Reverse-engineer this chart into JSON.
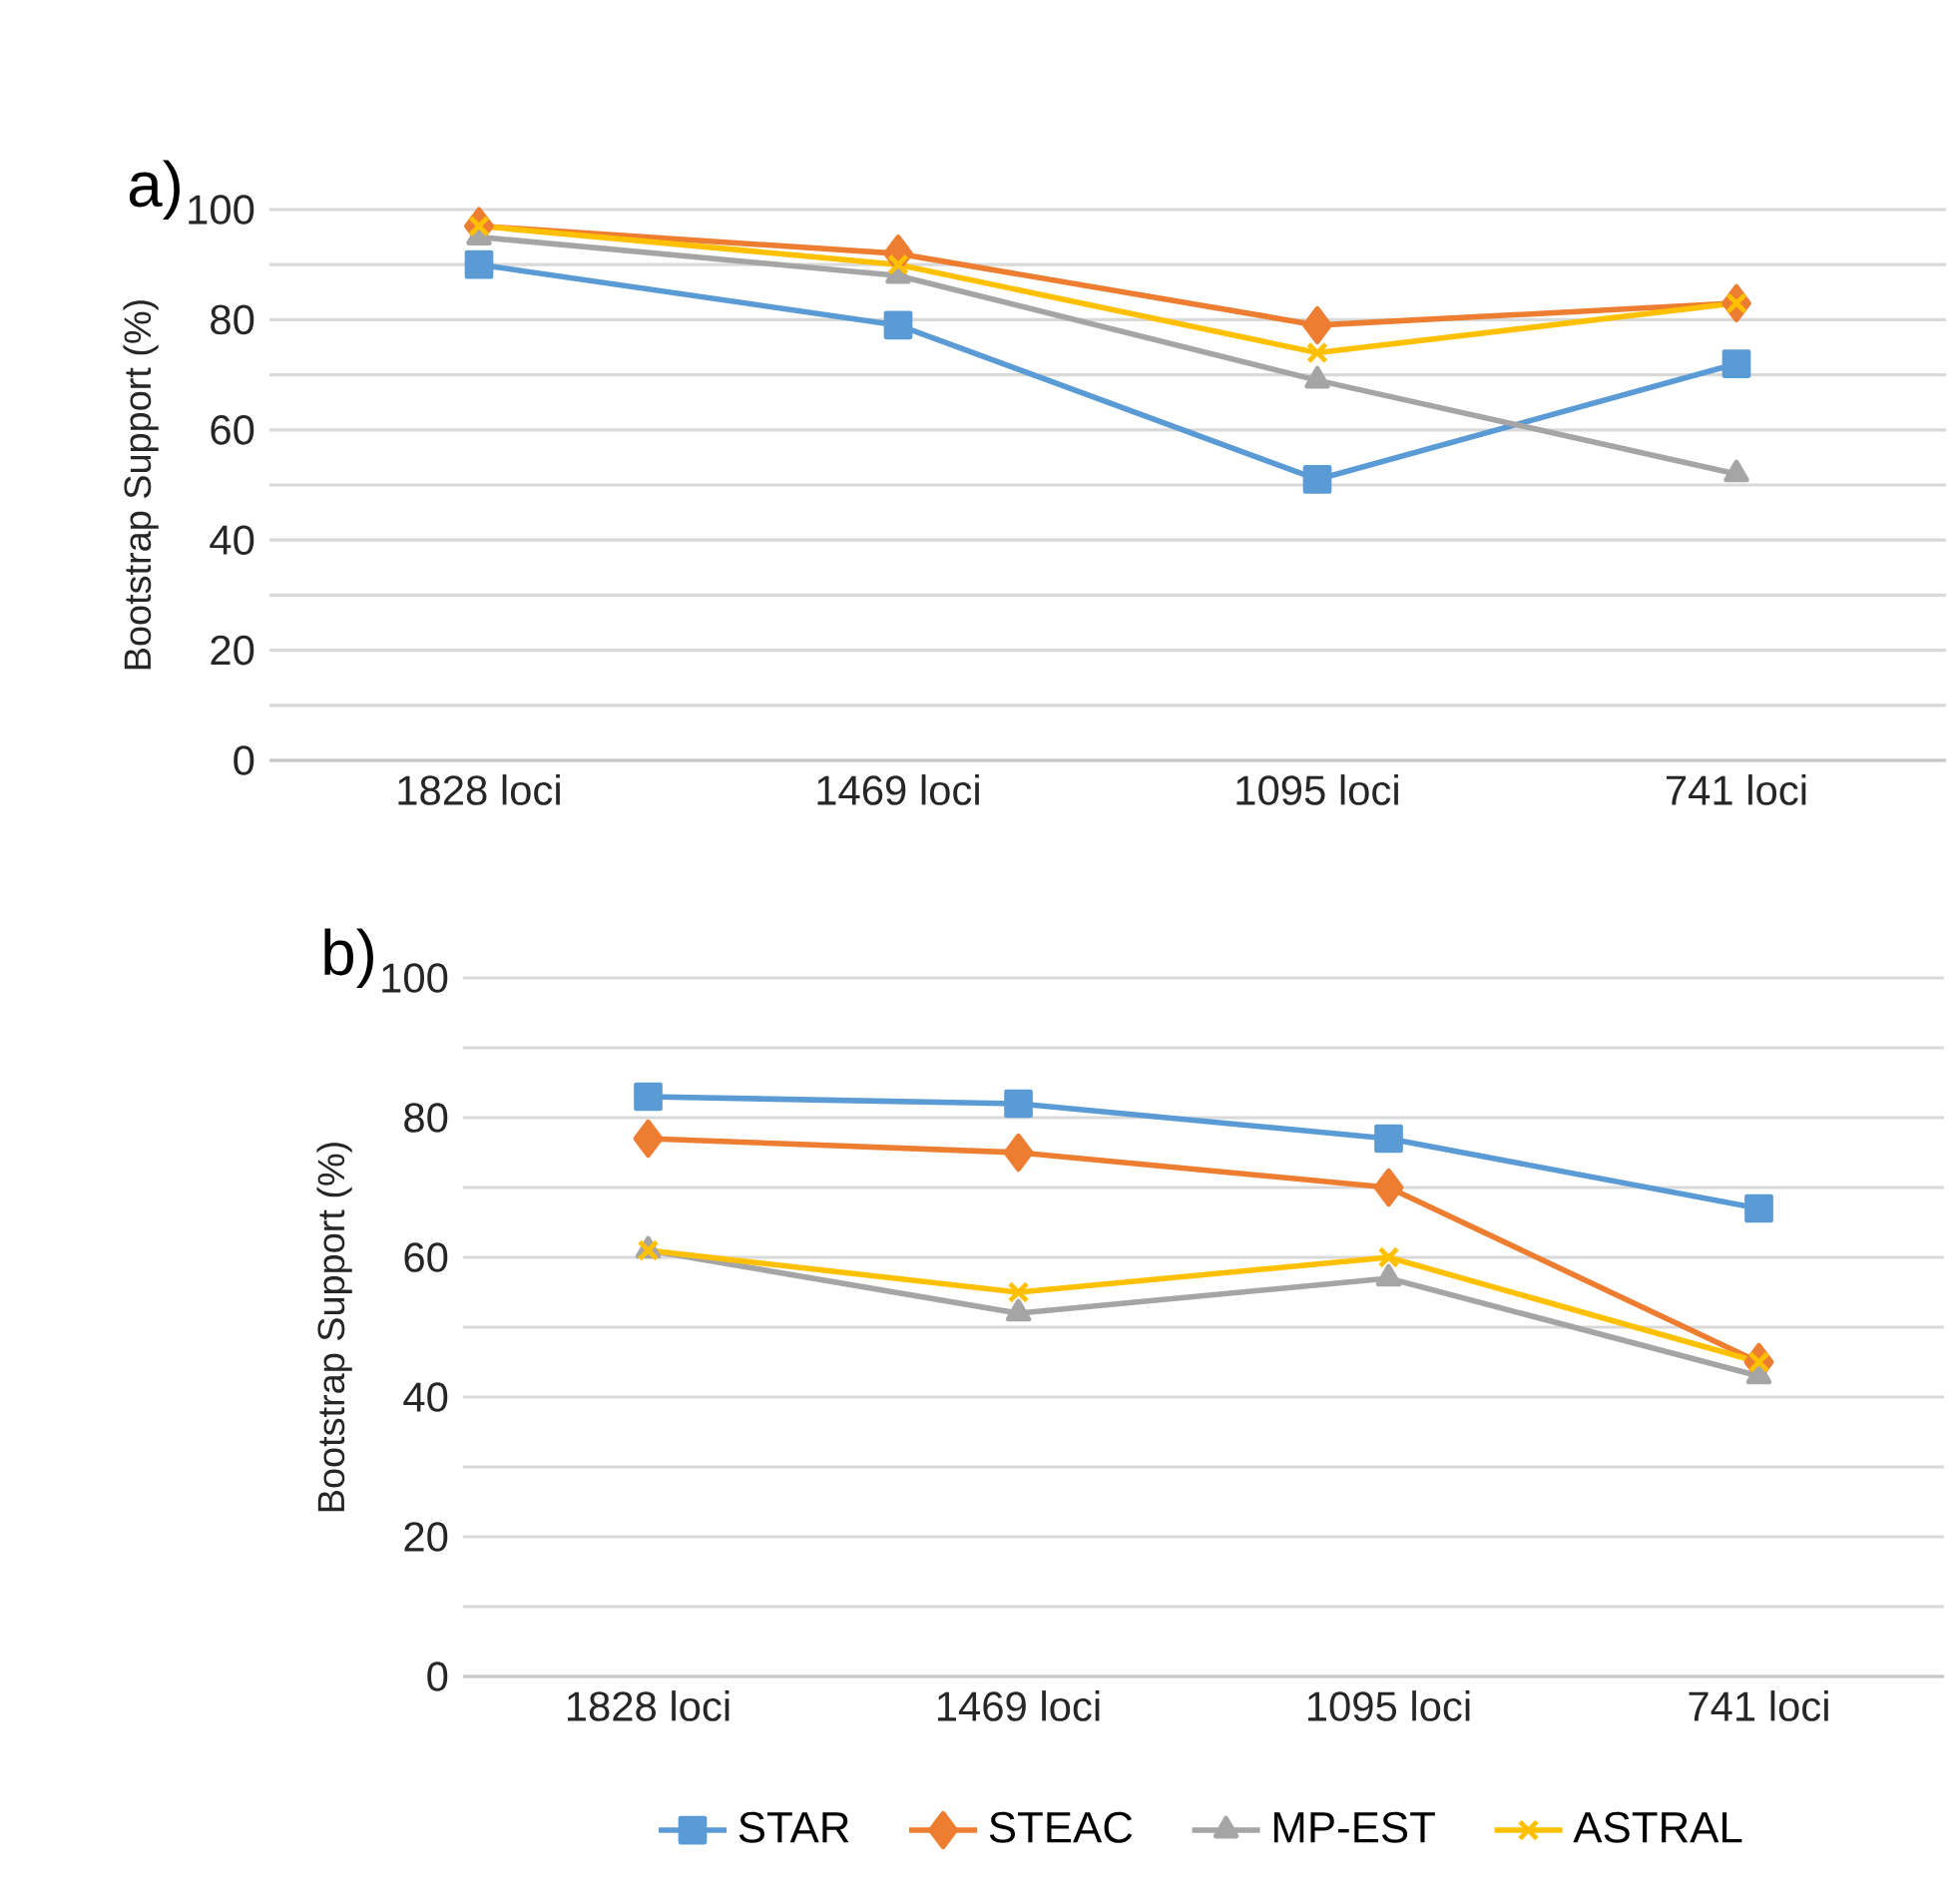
{
  "chart_data": [
    {
      "type": "line",
      "title": "a)",
      "ylabel": "Bootstrap Support (%)",
      "categories": [
        "1828 loci",
        "1469 loci",
        "1095 loci",
        "741 loci"
      ],
      "ylim": [
        0,
        100
      ],
      "yticks": [
        0,
        {
          "value": 10,
          "label": null
        },
        20,
        {
          "value": 30,
          "label": null
        },
        40,
        {
          "value": 50,
          "label": null
        },
        60,
        {
          "value": 70,
          "label": null
        },
        80,
        {
          "value": 90,
          "label": null
        },
        100
      ],
      "grid": "y",
      "legend": false,
      "line_style": "solid",
      "series": [
        {
          "color": "#5b9bd5",
          "marker": "square",
          "values": [
            90,
            79,
            51,
            72
          ]
        },
        {
          "color": "#ed7d31",
          "marker": "diamond",
          "values": [
            97,
            92,
            79,
            83
          ]
        },
        {
          "color": "#a5a5a5",
          "marker": "triangle",
          "values": [
            95,
            88,
            69,
            52
          ]
        },
        {
          "color": "#ffc000",
          "marker": "cross",
          "values": [
            97,
            90,
            74,
            83
          ]
        }
      ]
    },
    {
      "type": "line",
      "title": "b)",
      "ylabel": "Bootstrap Support (%)",
      "categories": [
        "1828 loci",
        "1469 loci",
        "1095 loci",
        "741 loci"
      ],
      "ylim": [
        0,
        100
      ],
      "yticks": [
        0,
        {
          "value": 10,
          "label": null
        },
        20,
        {
          "value": 30,
          "label": null
        },
        40,
        {
          "value": 50,
          "label": null
        },
        60,
        {
          "value": 70,
          "label": null
        },
        80,
        {
          "value": 90,
          "label": null
        },
        100
      ],
      "grid": "y",
      "legend": "bottom",
      "line_style": "solid",
      "series": [
        {
          "name": "STAR",
          "color": "#5b9bd5",
          "marker": "square",
          "values": [
            83,
            82,
            77,
            67
          ]
        },
        {
          "name": "STEAC",
          "color": "#ed7d31",
          "marker": "diamond",
          "values": [
            77,
            75,
            70,
            45
          ]
        },
        {
          "name": "MP-EST",
          "color": "#a5a5a5",
          "marker": "triangle",
          "values": [
            61,
            52,
            57,
            43
          ]
        },
        {
          "name": "ASTRAL",
          "color": "#ffc000",
          "marker": "cross",
          "values": [
            61,
            55,
            60,
            45
          ]
        }
      ]
    }
  ]
}
